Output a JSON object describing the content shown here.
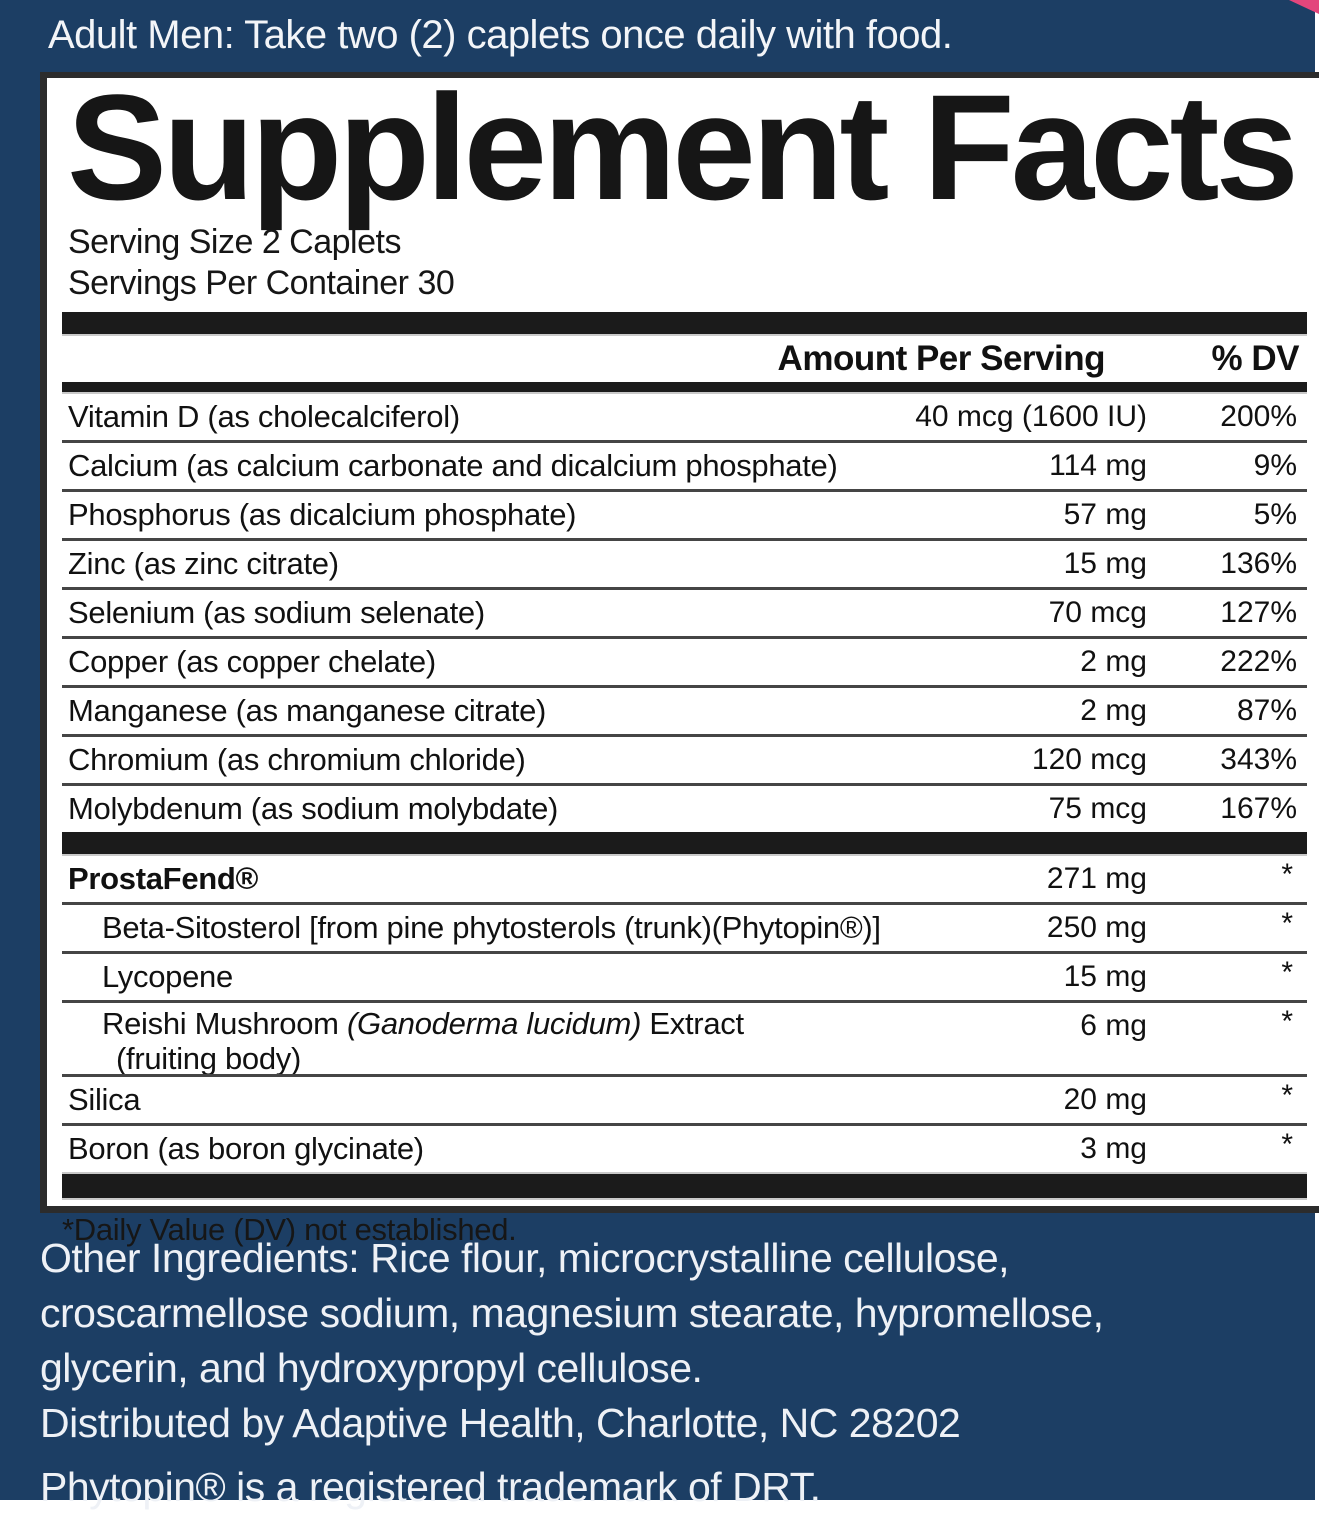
{
  "colors": {
    "label_blue": "#1c3e64",
    "panel_white": "#ffffff",
    "bar_black": "#1b1b1b",
    "accent_pink": "#e3467c",
    "text_dark": "#161616",
    "text_light": "#eef1f6"
  },
  "top_banner": {
    "text": "Adult Men: Take two (2) caplets once daily with food."
  },
  "panel": {
    "title": "Supplement Facts",
    "serving_size": "Serving Size 2 Caplets",
    "servings_per_container": "Servings Per Container 30",
    "header": {
      "amount": "Amount Per Serving",
      "dv": "% DV"
    },
    "rows": [
      {
        "name": "Vitamin D (as cholecalciferol)",
        "amount": "40 mcg (1600 IU)",
        "dv": "200%"
      },
      {
        "name": "Calcium (as calcium carbonate and dicalcium phosphate)",
        "amount": "114 mg",
        "dv": "9%"
      },
      {
        "name": "Phosphorus (as dicalcium phosphate)",
        "amount": "57 mg",
        "dv": "5%"
      },
      {
        "name": "Zinc (as zinc citrate)",
        "amount": "15 mg",
        "dv": "136%"
      },
      {
        "name": "Selenium (as sodium selenate)",
        "amount": "70 mcg",
        "dv": "127%"
      },
      {
        "name": "Copper (as copper chelate)",
        "amount": "2 mg",
        "dv": "222%"
      },
      {
        "name": "Manganese (as manganese citrate)",
        "amount": "2 mg",
        "dv": "87%"
      },
      {
        "name": "Chromium (as chromium chloride)",
        "amount": "120 mcg",
        "dv": "343%"
      },
      {
        "name": "Molybdenum (as sodium molybdate)",
        "amount": "75 mcg",
        "dv": "167%"
      },
      {
        "name": "ProstaFend®",
        "amount": "271 mg",
        "dv": "*"
      },
      {
        "name": "Beta-Sitosterol [from pine phytosterols (trunk)(Phytopin®)]",
        "amount": "250 mg",
        "dv": "*"
      },
      {
        "name": "Lycopene",
        "amount": "15 mg",
        "dv": "*"
      },
      {
        "name_pre": "Reishi Mushroom ",
        "name_italic": "(Ganoderma lucidum)",
        "name_post": " Extract",
        "name_line2": "(fruiting body)",
        "amount": "6 mg",
        "dv": "*"
      },
      {
        "name": "Silica",
        "amount": "20 mg",
        "dv": "*"
      },
      {
        "name": "Boron (as boron glycinate)",
        "amount": "3 mg",
        "dv": "*"
      }
    ],
    "footnote": "*Daily Value (DV) not established."
  },
  "footer": {
    "other_ingredients": "Other Ingredients: Rice flour, microcrystalline cellulose, croscarmellose sodium, magnesium stearate, hypromellose, glycerin, and hydroxypropyl cellulose.",
    "distributor": "Distributed by Adaptive Health, Charlotte, NC 28202",
    "trademark": "Phytopin® is a registered trademark of DRT."
  }
}
